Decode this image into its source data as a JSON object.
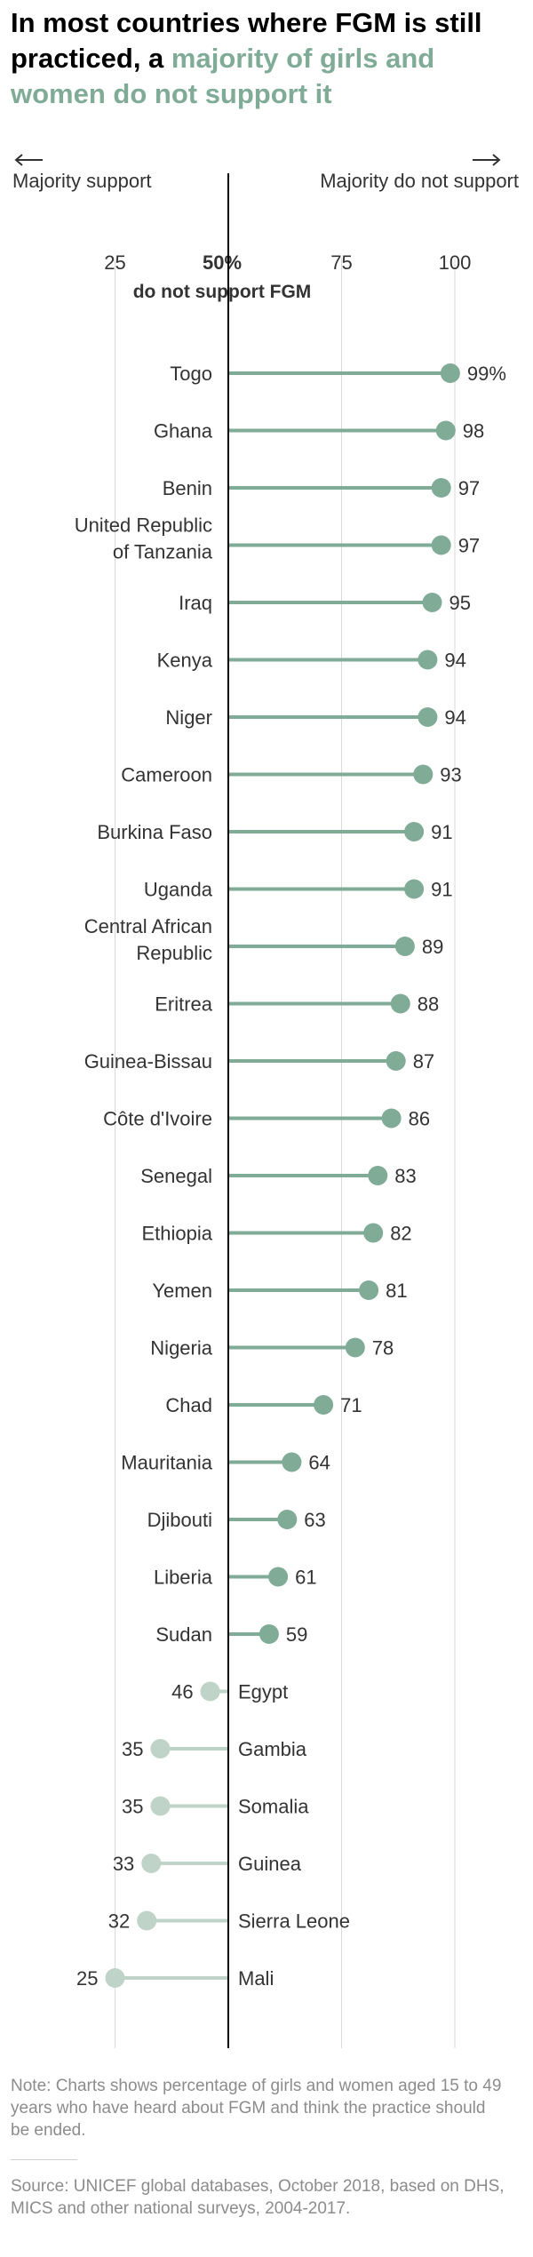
{
  "header": {
    "title_lead": "In most countries where FGM is still practiced, a ",
    "title_highlight": "majority of girls and women do not support it"
  },
  "directions": {
    "left_label": "Majority support",
    "right_label": "Majority do not support"
  },
  "colors": {
    "accent": "#7fab97",
    "dark_line": "#000000",
    "minority": "#bfd3c8",
    "grid": "#d9d9d9"
  },
  "chart_data": {
    "type": "lollipop",
    "baseline": 50,
    "baseline_label": "50%",
    "baseline_sublabel": "do not support FGM",
    "xlim": [
      20,
      105
    ],
    "ticks": [
      25,
      50,
      75,
      100
    ],
    "grid": true,
    "categories": [
      "Togo",
      "Ghana",
      "Benin",
      "United Republic of Tanzania",
      "Iraq",
      "Kenya",
      "Niger",
      "Cameroon",
      "Burkina Faso",
      "Uganda",
      "Central African Republic",
      "Eritrea",
      "Guinea-Bissau",
      "Côte d'Ivoire",
      "Senegal",
      "Ethiopia",
      "Yemen",
      "Nigeria",
      "Chad",
      "Mauritania",
      "Djibouti",
      "Liberia",
      "Sudan",
      "Egypt",
      "Gambia",
      "Somalia",
      "Guinea",
      "Sierra Leone",
      "Mali"
    ],
    "values": [
      99,
      98,
      97,
      97,
      95,
      94,
      94,
      93,
      91,
      91,
      89,
      88,
      87,
      86,
      83,
      82,
      81,
      78,
      71,
      64,
      63,
      61,
      59,
      46,
      35,
      35,
      33,
      32,
      25
    ],
    "value_labels": [
      "99%",
      "98",
      "97",
      "97",
      "95",
      "94",
      "94",
      "93",
      "91",
      "91",
      "89",
      "88",
      "87",
      "86",
      "83",
      "82",
      "81",
      "78",
      "71",
      "64",
      "63",
      "61",
      "59",
      "46",
      "35",
      "35",
      "33",
      "32",
      "25"
    ]
  },
  "footer": {
    "note": "Note: Charts shows percentage of girls and women aged 15 to 49 years who have heard about FGM and think the practice should be ended.",
    "source": "Source: UNICEF global databases, October 2018, based on DHS, MICS and other national surveys, 2004-2017."
  }
}
